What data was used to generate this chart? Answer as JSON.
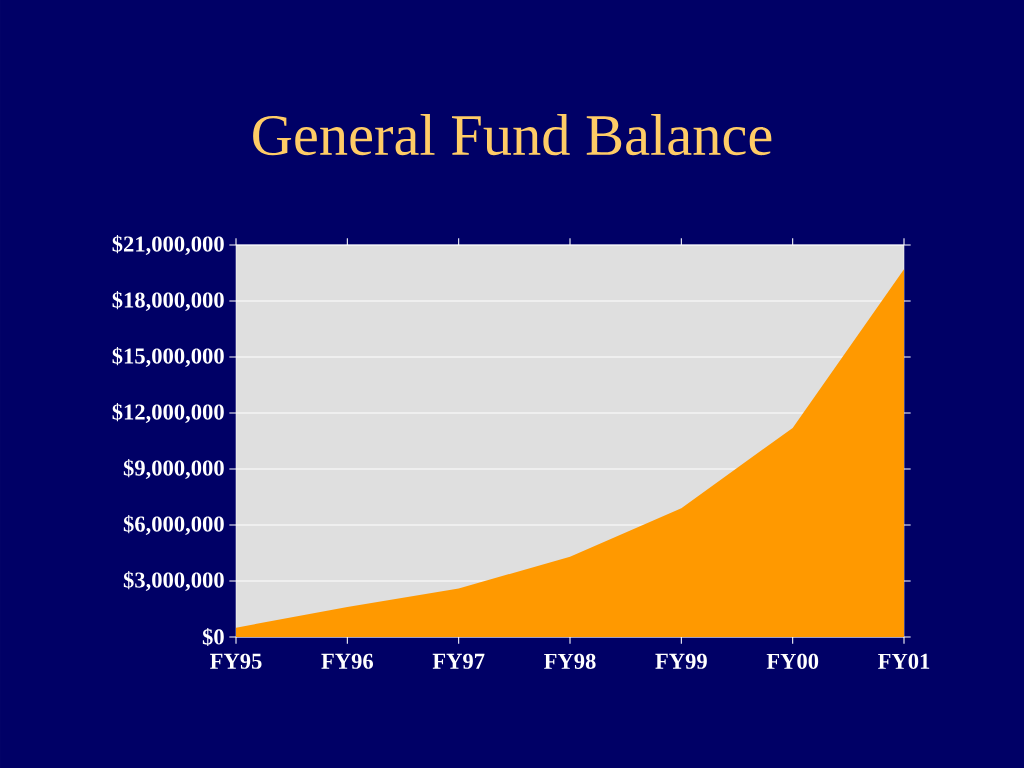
{
  "chart_data": {
    "type": "area",
    "title": "General Fund Balance",
    "categories": [
      "FY95",
      "FY96",
      "FY97",
      "FY98",
      "FY99",
      "FY00",
      "FY01"
    ],
    "values": [
      500000,
      1600000,
      2600000,
      4300000,
      6900000,
      11200000,
      19700000
    ],
    "color": "#ff9900",
    "ylim": [
      0,
      21000000
    ],
    "yticks": [
      {
        "value": 0,
        "label": "$0"
      },
      {
        "value": 3000000,
        "label": "$3,000,000"
      },
      {
        "value": 6000000,
        "label": "$6,000,000"
      },
      {
        "value": 9000000,
        "label": "$9,000,000"
      },
      {
        "value": 12000000,
        "label": "$12,000,000"
      },
      {
        "value": 15000000,
        "label": "$15,000,000"
      },
      {
        "value": 18000000,
        "label": "$18,000,000"
      },
      {
        "value": 21000000,
        "label": "$21,000,000"
      }
    ],
    "grid": "y"
  }
}
